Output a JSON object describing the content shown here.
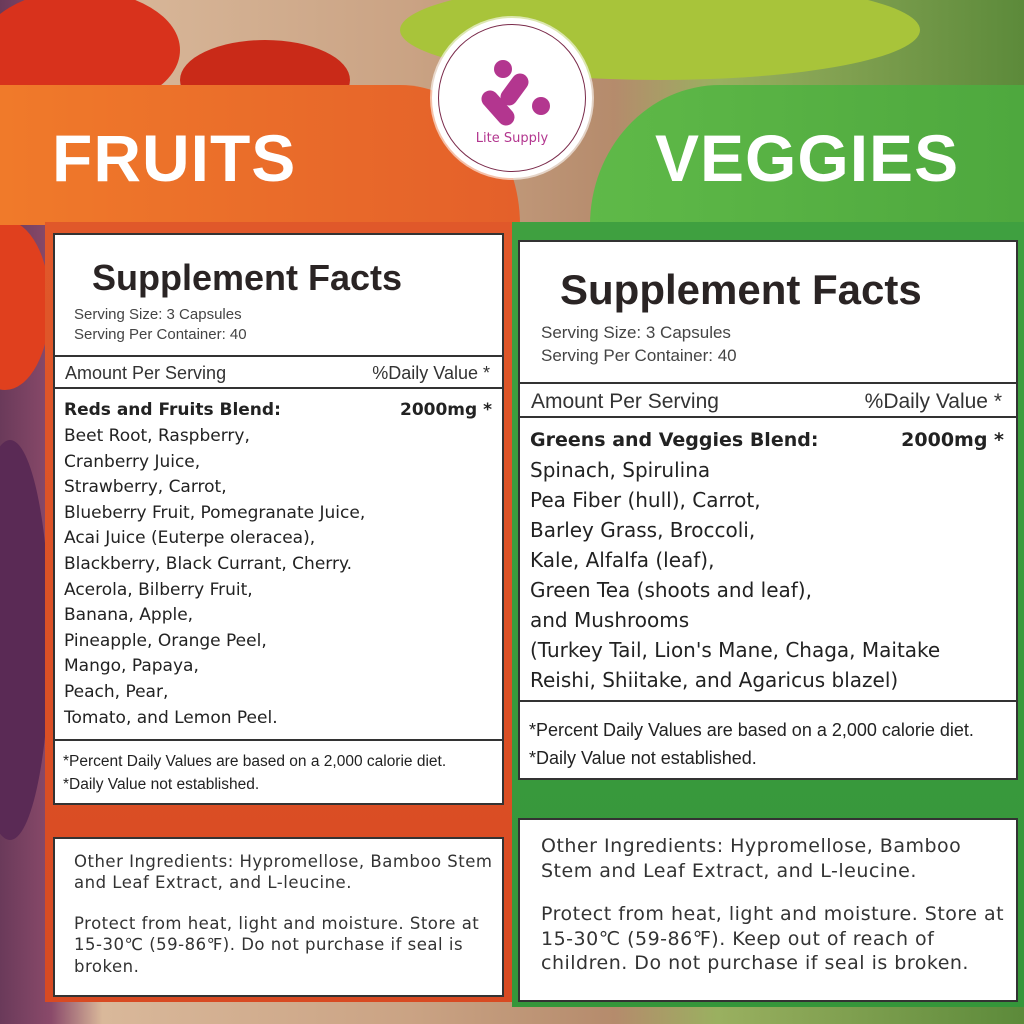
{
  "brand": {
    "logo_text": "Lite Supply",
    "logo_color": "#b3368f"
  },
  "fruits": {
    "heading": "FRUITS",
    "title": "Supplement Facts",
    "serving_size": "Serving Size: 3 Capsules",
    "servings": "Serving Per Container: 40",
    "amount_header": "Amount Per Serving",
    "dv_header": "%Daily Value *",
    "blend_name": "Reds and Fruits Blend:",
    "blend_amount": "2000mg *",
    "ingredients": [
      "Beet Root, Raspberry,",
      "Cranberry Juice,",
      "Strawberry, Carrot,",
      "Blueberry Fruit, Pomegranate Juice,",
      "Acai Juice (Euterpe oleracea),",
      "Blackberry, Black Currant, Cherry.",
      "Acerola, Bilberry Fruit,",
      "Banana, Apple,",
      "Pineapple, Orange Peel,",
      "Mango, Papaya,",
      "Peach, Pear,",
      "Tomato, and Lemon Peel."
    ],
    "footnote1": "*Percent Daily Values are based on a 2,000 calorie diet.",
    "footnote2": "*Daily Value not established.",
    "other": "Other Ingredients:  Hypromellose, Bamboo Stem  and Leaf Extract, and L-leucine.",
    "storage": "Protect from heat, light and moisture. Store at 15-30℃ (59-86℉). Do not purchase if seal is broken.",
    "color": "#e4602a"
  },
  "veggies": {
    "heading": "VEGGIES",
    "title": "Supplement Facts",
    "serving_size": "Serving Size: 3 Capsules",
    "servings": "Serving Per Container: 40",
    "amount_header": "Amount Per Serving",
    "dv_header": "%Daily Value *",
    "blend_name": "Greens and Veggies Blend:",
    "blend_amount": "2000mg *",
    "ingredients": [
      "Spinach, Spirulina",
      "Pea Fiber (hull), Carrot,",
      "Barley Grass, Broccoli,",
      "Kale, Alfalfa (leaf),",
      "Green Tea (shoots and leaf),",
      "and Mushrooms",
      "(Turkey Tail, Lion's Mane, Chaga, Maitake",
      "Reishi, Shiitake, and Agaricus blazel)"
    ],
    "footnote1": "*Percent Daily Values are based on a 2,000 calorie diet.",
    "footnote2": "*Daily Value not established.",
    "other": "Other Ingredients:  Hypromellose, Bamboo Stem  and Leaf Extract, and L-leucine.",
    "storage": "Protect from heat, light and moisture. Store at  15-30℃ (59-86℉). Keep out of reach of children. Do not purchase if seal is broken.",
    "color": "#4ea83e"
  }
}
